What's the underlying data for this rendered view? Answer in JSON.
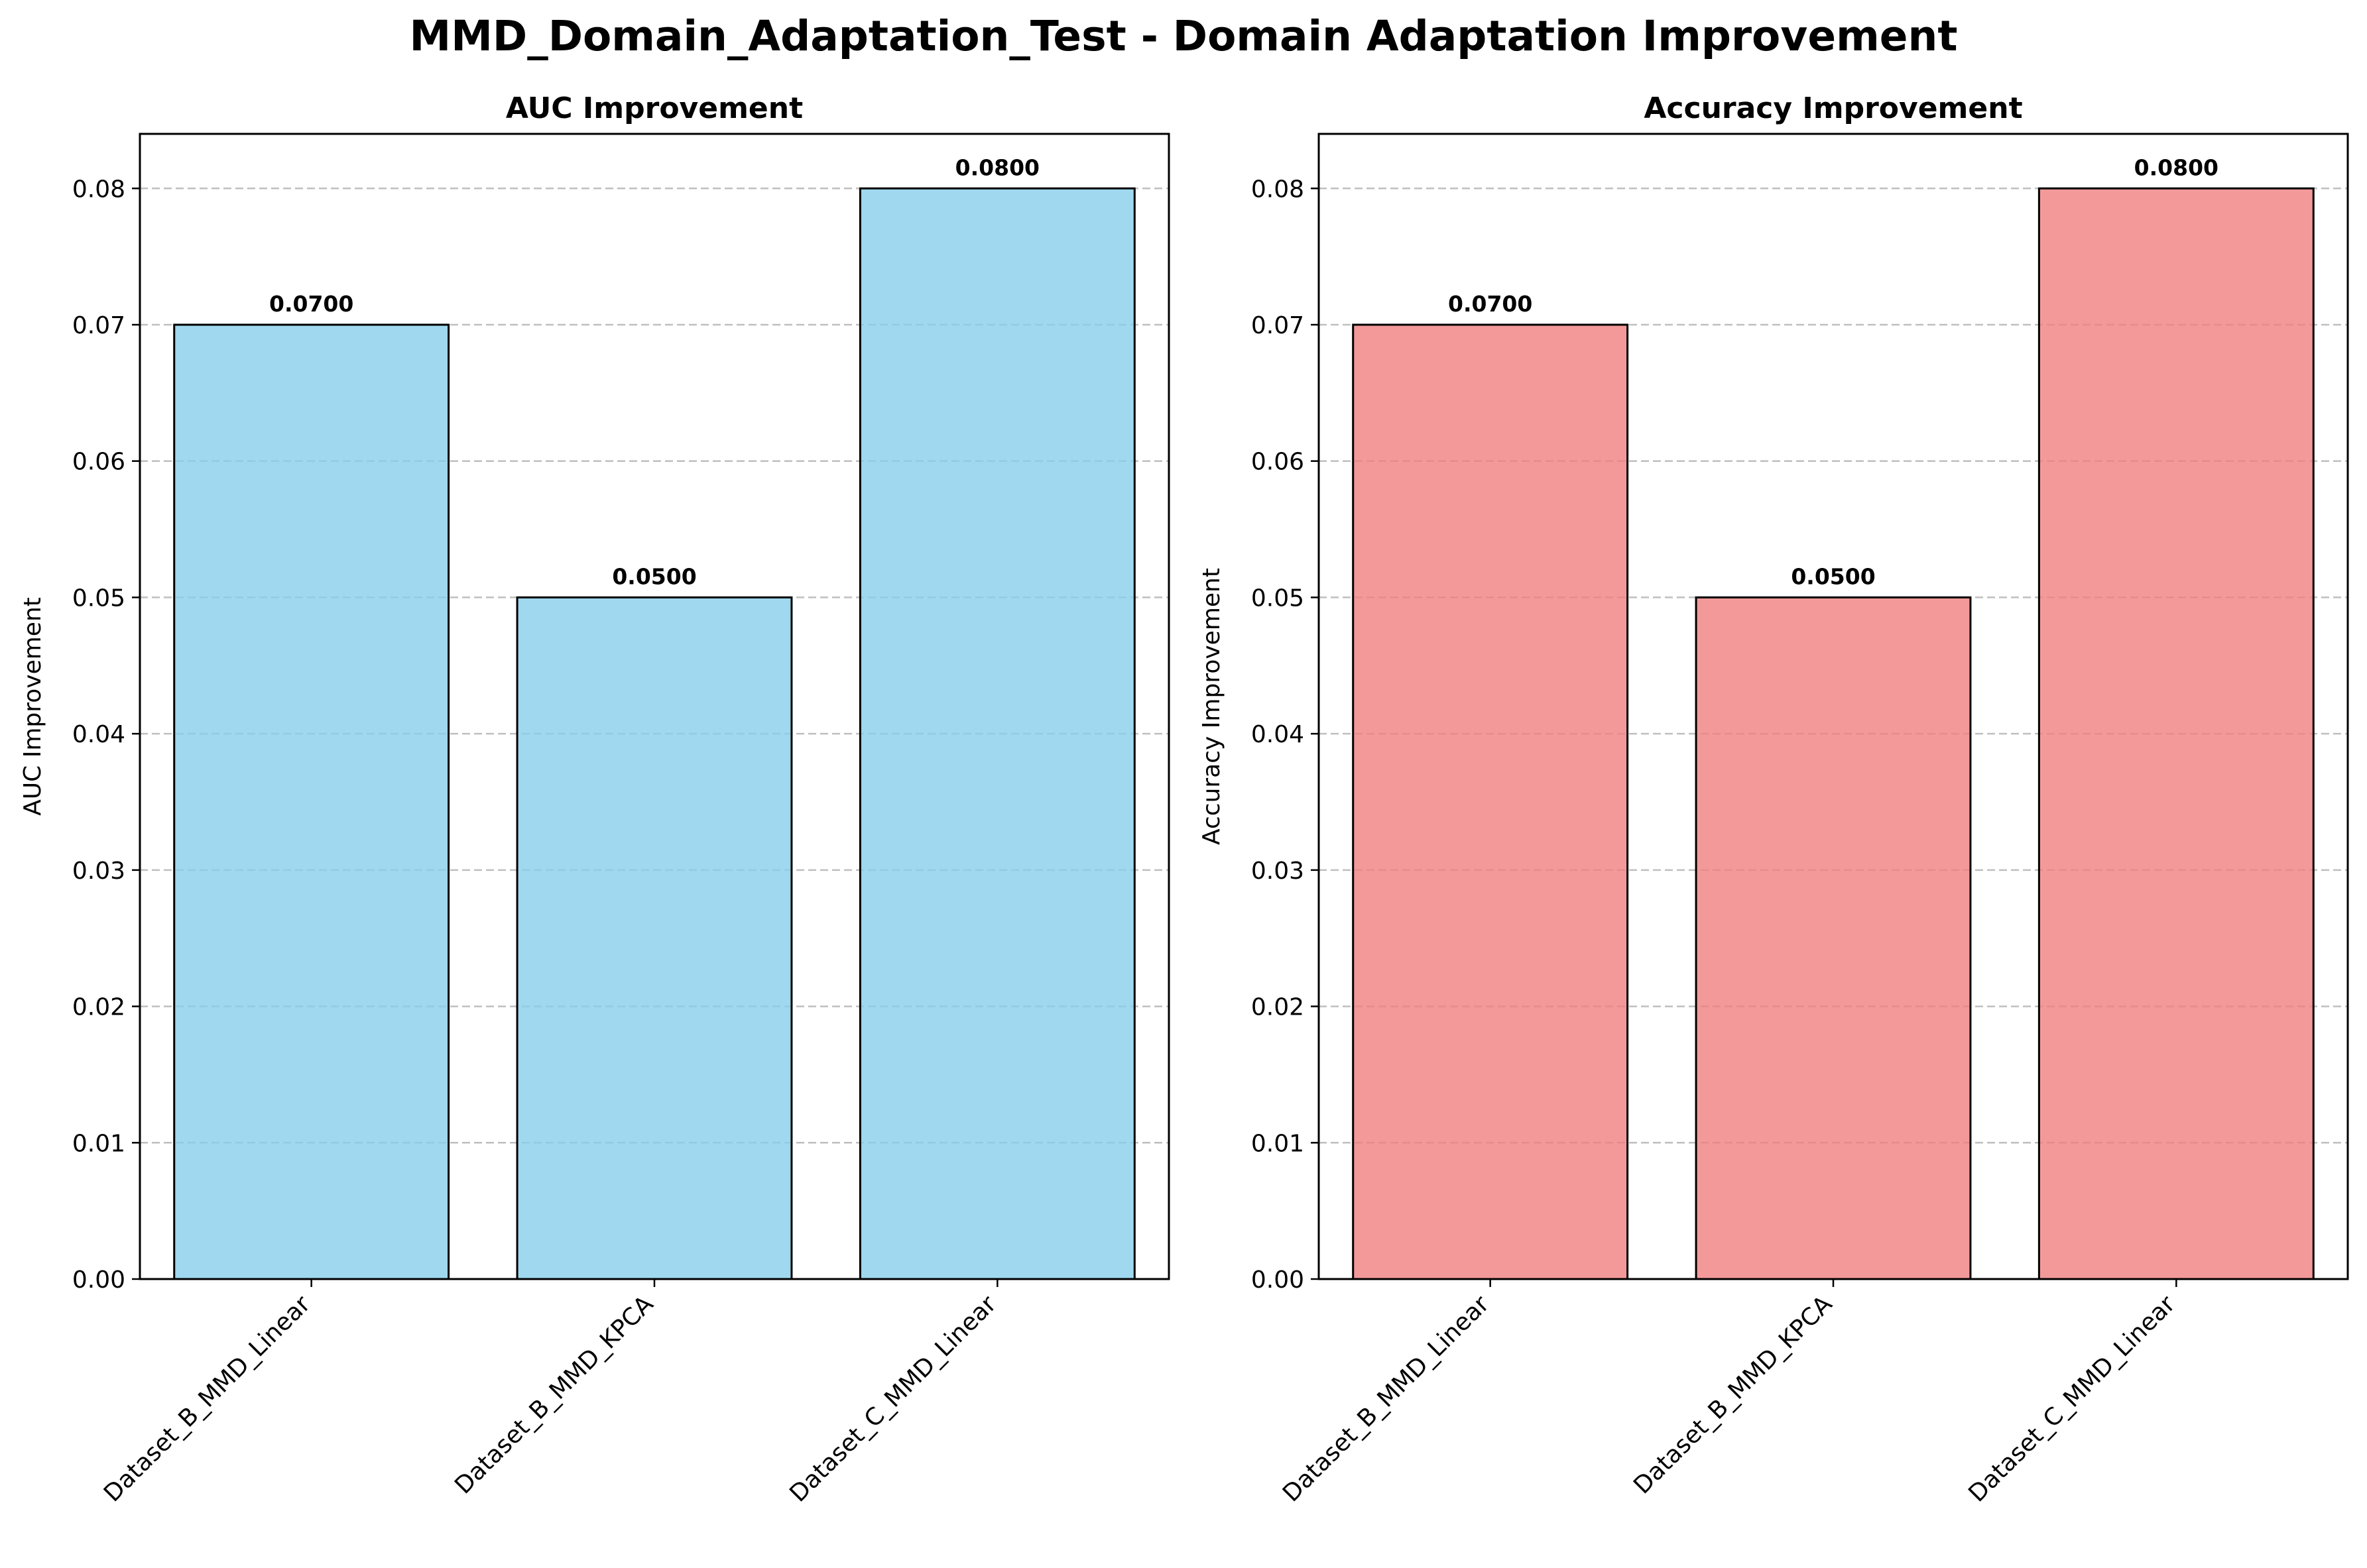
{
  "figure_title": "MMD_Domain_Adaptation_Test - Domain Adaptation Improvement",
  "chart_data": [
    {
      "type": "bar",
      "title": "AUC Improvement",
      "xlabel": "",
      "ylabel": "AUC Improvement",
      "categories": [
        "Dataset_B_MMD_Linear",
        "Dataset_B_MMD_KPCA",
        "Dataset_C_MMD_Linear"
      ],
      "values": [
        0.07,
        0.05,
        0.08
      ],
      "value_labels": [
        "0.0700",
        "0.0500",
        "0.0800"
      ],
      "yticks": [
        "0.00",
        "0.01",
        "0.02",
        "0.03",
        "0.04",
        "0.05",
        "0.06",
        "0.07",
        "0.08"
      ],
      "ylim": [
        0,
        0.084
      ],
      "grid": "y-dashed",
      "bar_color": "#87ceeb",
      "edge_color": "#000000",
      "zero_line_color": "#cc0000"
    },
    {
      "type": "bar",
      "title": "Accuracy Improvement",
      "xlabel": "",
      "ylabel": "Accuracy Improvement",
      "categories": [
        "Dataset_B_MMD_Linear",
        "Dataset_B_MMD_KPCA",
        "Dataset_C_MMD_Linear"
      ],
      "values": [
        0.07,
        0.05,
        0.08
      ],
      "value_labels": [
        "0.0700",
        "0.0500",
        "0.0800"
      ],
      "yticks": [
        "0.00",
        "0.01",
        "0.02",
        "0.03",
        "0.04",
        "0.05",
        "0.06",
        "0.07",
        "0.08"
      ],
      "ylim": [
        0,
        0.084
      ],
      "grid": "y-dashed",
      "bar_color": "#f08080",
      "edge_color": "#000000",
      "zero_line_color": "#cc0000"
    }
  ]
}
